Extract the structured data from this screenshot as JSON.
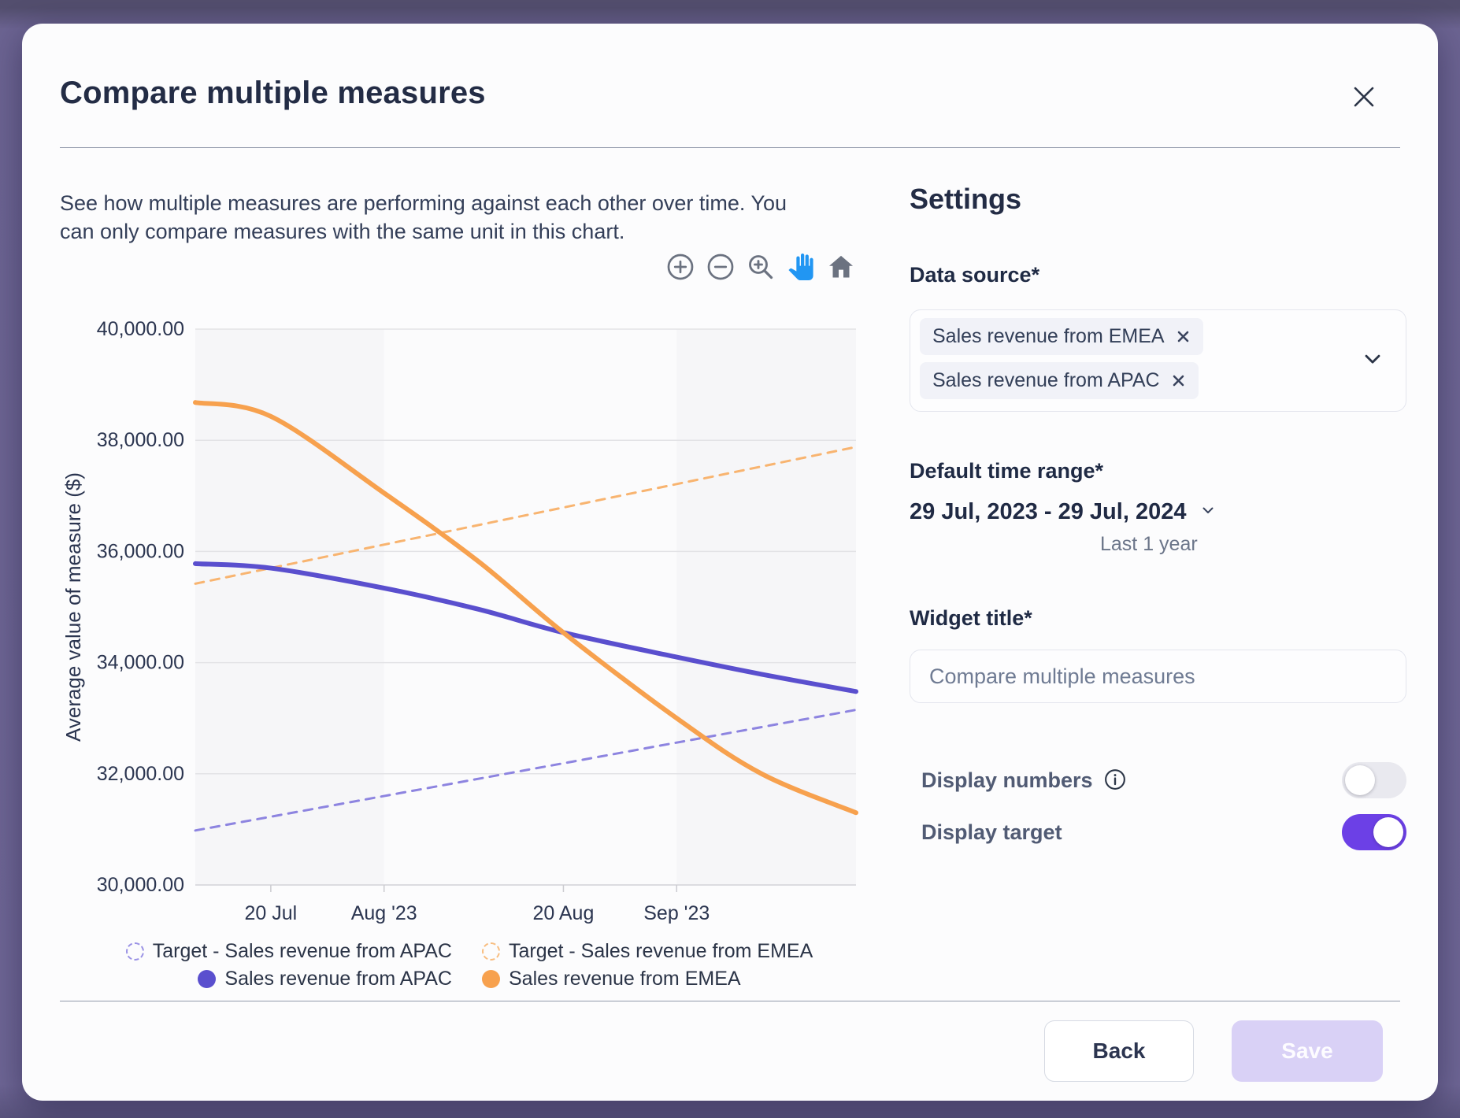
{
  "modal": {
    "title": "Compare multiple measures",
    "description": "See how multiple measures are performing against each other over time. You\ncan only compare measures with the same unit in this chart.",
    "footer": {
      "back_label": "Back",
      "save_label": "Save"
    }
  },
  "toolbar": {
    "icons": [
      "zoom-in-icon",
      "zoom-out-icon",
      "zoom-area-icon",
      "pan-icon",
      "home-icon"
    ],
    "active_icon": "pan-icon"
  },
  "settings": {
    "heading": "Settings",
    "data_source": {
      "label": "Data source*",
      "chips": [
        "Sales revenue from EMEA",
        "Sales revenue from APAC"
      ]
    },
    "time_range": {
      "label": "Default time range*",
      "value": "29 Jul, 2023 - 29 Jul, 2024",
      "hint": "Last 1 year"
    },
    "widget_title": {
      "label": "Widget title*",
      "value": "",
      "placeholder": "Compare multiple measures"
    },
    "toggles": [
      {
        "label": "Display numbers",
        "has_info": true,
        "state": "off"
      },
      {
        "label": "Display target",
        "has_info": false,
        "state": "on"
      }
    ]
  },
  "colors": {
    "accent_purple": "#6c40e6",
    "toggle_off_track": "#e9e9ef",
    "pan_active_blue": "#2196f3",
    "toolbar_gray": "#6b7280",
    "solid_apac": "#5a4fce",
    "solid_emea": "#f7a14e",
    "dashed_apac": "#8d84e0",
    "dashed_emea": "#f8b470"
  },
  "chart_data": {
    "type": "line",
    "title": "",
    "xlabel": "",
    "ylabel": "Average value of measure ($)",
    "ylim": [
      30000,
      40000
    ],
    "grid": "horizontal",
    "legend_position": "bottom",
    "y_ticks": [
      {
        "v": 40000,
        "label": "40,000.00"
      },
      {
        "v": 38000,
        "label": "38,000.00"
      },
      {
        "v": 36000,
        "label": "36,000.00"
      },
      {
        "v": 34000,
        "label": "34,000.00"
      },
      {
        "v": 32000,
        "label": "32,000.00"
      },
      {
        "v": 30000,
        "label": "30,000.00"
      }
    ],
    "x_domain_days": [
      0,
      70
    ],
    "x_ticks": [
      {
        "day": 8,
        "label": "20 Jul"
      },
      {
        "day": 20,
        "label": "Aug '23"
      },
      {
        "day": 39,
        "label": "20 Aug"
      },
      {
        "day": 51,
        "label": "Sep '23"
      }
    ],
    "bands": [
      {
        "from": 0,
        "to": 20,
        "color": "#f6f6f8"
      },
      {
        "from": 20,
        "to": 51,
        "color": "#fbfbfc"
      },
      {
        "from": 51,
        "to": 70,
        "color": "#f6f6f8"
      }
    ],
    "series": [
      {
        "name": "Target - Sales revenue from APAC",
        "color": "#8d84e0",
        "swatch": "#9a92e5",
        "dashed": true,
        "width": 3,
        "points": [
          [
            0,
            30980
          ],
          [
            70,
            33150
          ]
        ]
      },
      {
        "name": "Target - Sales revenue from EMEA",
        "color": "#f8b470",
        "swatch": "#f8bd80",
        "dashed": true,
        "width": 3,
        "points": [
          [
            0,
            35420
          ],
          [
            70,
            37880
          ]
        ]
      },
      {
        "name": "Sales revenue from APAC",
        "color": "#5a4fce",
        "swatch": "#5a4fce",
        "dashed": false,
        "width": 6,
        "points": [
          [
            0,
            35780
          ],
          [
            8,
            35700
          ],
          [
            20,
            35340
          ],
          [
            30,
            34960
          ],
          [
            39,
            34540
          ],
          [
            51,
            34100
          ],
          [
            60,
            33790
          ],
          [
            70,
            33480
          ]
        ]
      },
      {
        "name": "Sales revenue from EMEA",
        "color": "#f7a14e",
        "swatch": "#f7a14e",
        "dashed": false,
        "width": 6,
        "points": [
          [
            0,
            38680
          ],
          [
            8,
            38430
          ],
          [
            20,
            37050
          ],
          [
            30,
            35820
          ],
          [
            39,
            34540
          ],
          [
            51,
            33000
          ],
          [
            60,
            32000
          ],
          [
            70,
            31300
          ]
        ]
      }
    ]
  }
}
